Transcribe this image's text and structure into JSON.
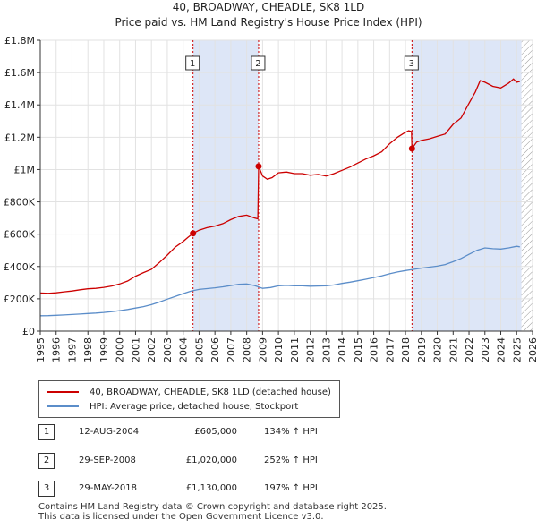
{
  "title": "40, BROADWAY, CHEADLE, SK8 1LD",
  "subtitle": "Price paid vs. HM Land Registry's House Price Index (HPI)",
  "chart_data": {
    "type": "line",
    "xlim": [
      1995,
      2026
    ],
    "ylim": [
      0,
      1800000
    ],
    "y_ticks": [
      {
        "value": 0,
        "label": "£0"
      },
      {
        "value": 200000,
        "label": "£200K"
      },
      {
        "value": 400000,
        "label": "£400K"
      },
      {
        "value": 600000,
        "label": "£600K"
      },
      {
        "value": 800000,
        "label": "£800K"
      },
      {
        "value": 1000000,
        "label": "£1M"
      },
      {
        "value": 1200000,
        "label": "£1.2M"
      },
      {
        "value": 1400000,
        "label": "£1.4M"
      },
      {
        "value": 1600000,
        "label": "£1.6M"
      },
      {
        "value": 1800000,
        "label": "£1.8M"
      }
    ],
    "x_ticks": [
      "1995",
      "1996",
      "1997",
      "1998",
      "1999",
      "2000",
      "2001",
      "2002",
      "2003",
      "2004",
      "2005",
      "2006",
      "2007",
      "2008",
      "2009",
      "2010",
      "2011",
      "2012",
      "2013",
      "2014",
      "2015",
      "2016",
      "2017",
      "2018",
      "2019",
      "2020",
      "2021",
      "2022",
      "2023",
      "2024",
      "2025",
      "2026"
    ],
    "grid": true,
    "shaded_periods": [
      [
        2004.62,
        2008.75
      ],
      [
        2018.41,
        2025.3
      ]
    ],
    "hatched_from": 2025.3,
    "series": [
      {
        "name": "40, BROADWAY, CHEADLE, SK8 1LD (detached house)",
        "color": "#cc0000",
        "points": [
          [
            1995.0,
            236000
          ],
          [
            1995.5,
            234000
          ],
          [
            1996.0,
            237000
          ],
          [
            1996.5,
            243000
          ],
          [
            1997.0,
            248000
          ],
          [
            1997.5,
            256000
          ],
          [
            1998.0,
            262000
          ],
          [
            1998.5,
            265000
          ],
          [
            1999.0,
            271000
          ],
          [
            1999.5,
            279000
          ],
          [
            2000.0,
            292000
          ],
          [
            2000.5,
            310000
          ],
          [
            2001.0,
            340000
          ],
          [
            2001.5,
            362000
          ],
          [
            2002.0,
            382000
          ],
          [
            2002.5,
            425000
          ],
          [
            2003.0,
            470000
          ],
          [
            2003.5,
            520000
          ],
          [
            2004.0,
            555000
          ],
          [
            2004.3,
            580000
          ],
          [
            2004.62,
            605000
          ],
          [
            2005.0,
            625000
          ],
          [
            2005.5,
            640000
          ],
          [
            2006.0,
            650000
          ],
          [
            2006.5,
            665000
          ],
          [
            2007.0,
            690000
          ],
          [
            2007.5,
            710000
          ],
          [
            2008.0,
            718000
          ],
          [
            2008.5,
            700000
          ],
          [
            2008.7,
            695000
          ],
          [
            2008.75,
            1020000
          ],
          [
            2009.0,
            960000
          ],
          [
            2009.3,
            940000
          ],
          [
            2009.6,
            950000
          ],
          [
            2010.0,
            980000
          ],
          [
            2010.5,
            985000
          ],
          [
            2011.0,
            975000
          ],
          [
            2011.5,
            975000
          ],
          [
            2012.0,
            965000
          ],
          [
            2012.5,
            970000
          ],
          [
            2013.0,
            960000
          ],
          [
            2013.5,
            975000
          ],
          [
            2014.0,
            995000
          ],
          [
            2014.5,
            1015000
          ],
          [
            2015.0,
            1040000
          ],
          [
            2015.5,
            1065000
          ],
          [
            2016.0,
            1085000
          ],
          [
            2016.5,
            1110000
          ],
          [
            2017.0,
            1160000
          ],
          [
            2017.5,
            1200000
          ],
          [
            2017.9,
            1225000
          ],
          [
            2018.2,
            1240000
          ],
          [
            2018.38,
            1235000
          ],
          [
            2018.41,
            1130000
          ],
          [
            2018.7,
            1170000
          ],
          [
            2019.0,
            1180000
          ],
          [
            2019.5,
            1190000
          ],
          [
            2020.0,
            1205000
          ],
          [
            2020.5,
            1220000
          ],
          [
            2021.0,
            1280000
          ],
          [
            2021.5,
            1320000
          ],
          [
            2022.0,
            1410000
          ],
          [
            2022.4,
            1480000
          ],
          [
            2022.7,
            1550000
          ],
          [
            2023.0,
            1540000
          ],
          [
            2023.5,
            1515000
          ],
          [
            2024.0,
            1505000
          ],
          [
            2024.5,
            1535000
          ],
          [
            2024.8,
            1560000
          ],
          [
            2025.0,
            1540000
          ],
          [
            2025.2,
            1545000
          ]
        ]
      },
      {
        "name": "HPI: Average price, detached house, Stockport",
        "color": "#5b8dc9",
        "points": [
          [
            1995.0,
            95000
          ],
          [
            1995.5,
            96000
          ],
          [
            1996.0,
            98000
          ],
          [
            1996.5,
            100000
          ],
          [
            1997.0,
            103000
          ],
          [
            1997.5,
            106000
          ],
          [
            1998.0,
            109000
          ],
          [
            1998.5,
            112000
          ],
          [
            1999.0,
            116000
          ],
          [
            1999.5,
            121000
          ],
          [
            2000.0,
            127000
          ],
          [
            2000.5,
            134000
          ],
          [
            2001.0,
            143000
          ],
          [
            2001.5,
            152000
          ],
          [
            2002.0,
            164000
          ],
          [
            2002.5,
            180000
          ],
          [
            2003.0,
            198000
          ],
          [
            2003.5,
            215000
          ],
          [
            2004.0,
            232000
          ],
          [
            2004.5,
            248000
          ],
          [
            2005.0,
            258000
          ],
          [
            2005.5,
            263000
          ],
          [
            2006.0,
            268000
          ],
          [
            2006.5,
            274000
          ],
          [
            2007.0,
            282000
          ],
          [
            2007.5,
            290000
          ],
          [
            2008.0,
            292000
          ],
          [
            2008.5,
            282000
          ],
          [
            2009.0,
            265000
          ],
          [
            2009.5,
            270000
          ],
          [
            2010.0,
            280000
          ],
          [
            2010.5,
            283000
          ],
          [
            2011.0,
            280000
          ],
          [
            2011.5,
            280000
          ],
          [
            2012.0,
            278000
          ],
          [
            2012.5,
            279000
          ],
          [
            2013.0,
            280000
          ],
          [
            2013.5,
            286000
          ],
          [
            2014.0,
            295000
          ],
          [
            2014.5,
            303000
          ],
          [
            2015.0,
            312000
          ],
          [
            2015.5,
            321000
          ],
          [
            2016.0,
            332000
          ],
          [
            2016.5,
            342000
          ],
          [
            2017.0,
            355000
          ],
          [
            2017.5,
            366000
          ],
          [
            2018.0,
            375000
          ],
          [
            2018.5,
            382000
          ],
          [
            2019.0,
            390000
          ],
          [
            2019.5,
            396000
          ],
          [
            2020.0,
            402000
          ],
          [
            2020.5,
            412000
          ],
          [
            2021.0,
            430000
          ],
          [
            2021.5,
            450000
          ],
          [
            2022.0,
            475000
          ],
          [
            2022.5,
            500000
          ],
          [
            2023.0,
            515000
          ],
          [
            2023.5,
            510000
          ],
          [
            2024.0,
            508000
          ],
          [
            2024.5,
            515000
          ],
          [
            2025.0,
            525000
          ],
          [
            2025.2,
            522000
          ]
        ]
      }
    ],
    "sales": [
      {
        "id": "1",
        "year": 2004.62,
        "value": 605000,
        "date": "12-AUG-2004",
        "price": "£605,000",
        "hpi": "134% ↑ HPI"
      },
      {
        "id": "2",
        "year": 2008.75,
        "value": 1020000,
        "date": "29-SEP-2008",
        "price": "£1,020,000",
        "hpi": "252% ↑ HPI"
      },
      {
        "id": "3",
        "year": 2018.41,
        "value": 1130000,
        "date": "29-MAY-2018",
        "price": "£1,130,000",
        "hpi": "197% ↑ HPI"
      }
    ]
  },
  "legend": {
    "property_label": "40, BROADWAY, CHEADLE, SK8 1LD (detached house)",
    "hpi_label": "HPI: Average price, detached house, Stockport"
  },
  "footer": {
    "line1": "Contains HM Land Registry data © Crown copyright and database right 2025.",
    "line2": "This data is licensed under the Open Government Licence v3.0."
  }
}
